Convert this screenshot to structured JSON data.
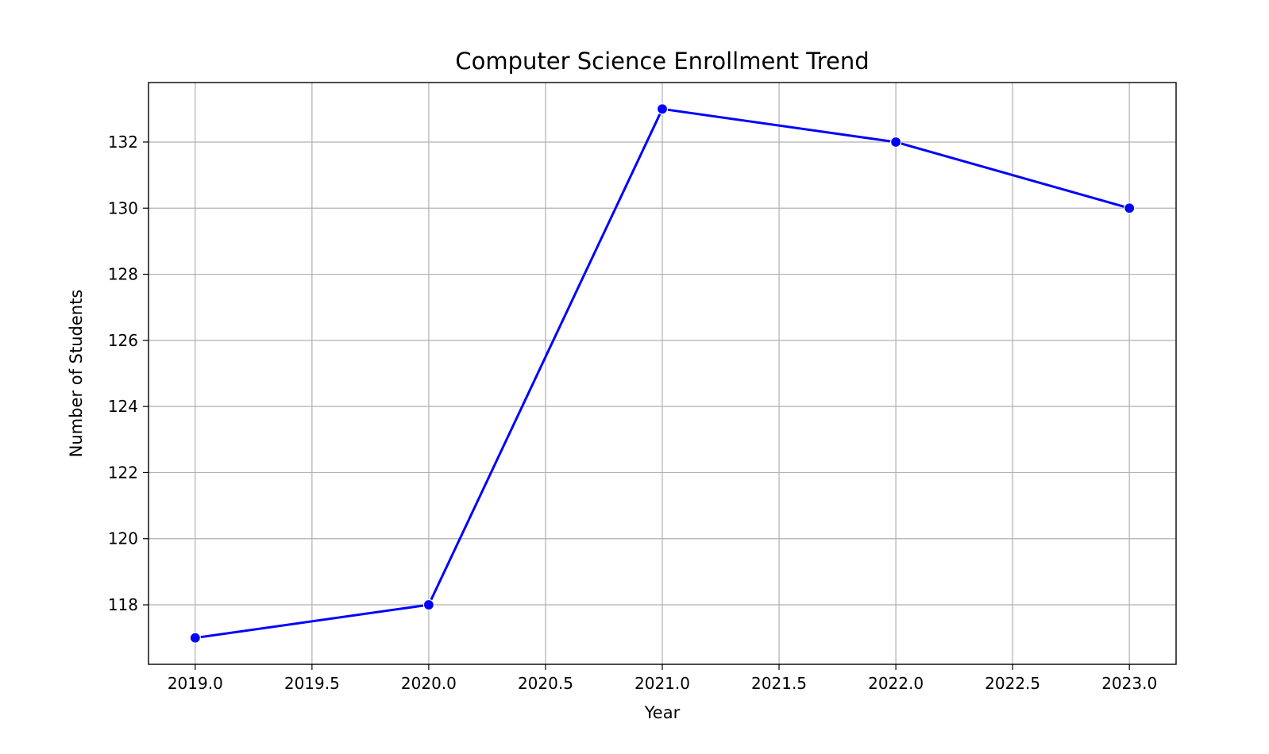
{
  "chart_data": {
    "type": "line",
    "title": "Computer Science Enrollment Trend",
    "xlabel": "Year",
    "ylabel": "Number of Students",
    "x": [
      2019,
      2020,
      2021,
      2022,
      2023
    ],
    "series": [
      {
        "values": [
          117,
          118,
          133,
          132,
          130
        ],
        "color": "#0000ff",
        "marker": "circle"
      }
    ],
    "xlim": [
      2018.8,
      2023.2
    ],
    "ylim": [
      116.2,
      133.8
    ],
    "xticks": [
      2019.0,
      2019.5,
      2020.0,
      2020.5,
      2021.0,
      2021.5,
      2022.0,
      2022.5,
      2023.0
    ],
    "xtick_labels": [
      "2019.0",
      "2019.5",
      "2020.0",
      "2020.5",
      "2021.0",
      "2021.5",
      "2022.0",
      "2022.5",
      "2023.0"
    ],
    "yticks": [
      118,
      120,
      122,
      124,
      126,
      128,
      130,
      132
    ],
    "ytick_labels": [
      "118",
      "120",
      "122",
      "124",
      "126",
      "128",
      "130",
      "132"
    ],
    "grid": true,
    "legend": "none"
  }
}
